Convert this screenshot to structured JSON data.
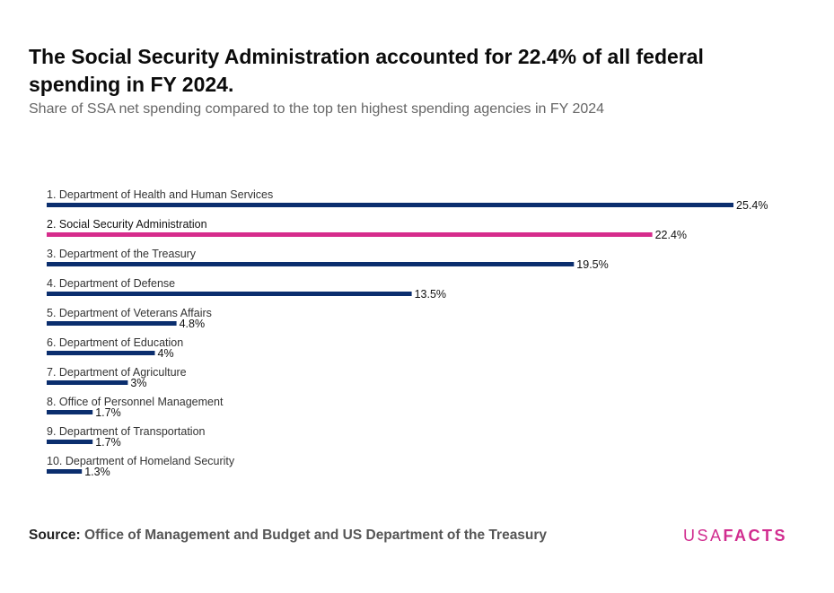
{
  "header": {
    "title": "The Social Security Administration accounted for 22.4% of all federal spending in FY 2024.",
    "subtitle": "Share of SSA net spending compared to the top ten highest spending agencies in FY 2024"
  },
  "footer": {
    "source_label": "Source:",
    "source_text": "Office of Management and Budget and US Department of the Treasury",
    "logo_usa": "USA",
    "logo_facts": "FACTS"
  },
  "colors": {
    "default_bar": "#0b2e6e",
    "highlight_bar": "#d62c8c",
    "brand": "#d12c8f"
  },
  "chart_data": {
    "type": "bar",
    "orientation": "horizontal",
    "title": "The Social Security Administration accounted for 22.4% of all federal spending in FY 2024.",
    "subtitle": "Share of SSA net spending compared to the top ten highest spending agencies in FY 2024",
    "xlim": [
      0,
      25.4
    ],
    "grid": false,
    "categories": [
      "1. Department of Health and Human Services",
      "2. Social Security Administration",
      "3. Department of the Treasury",
      "4. Department of Defense",
      "5. Department of Veterans Affairs",
      "6. Department of Education",
      "7. Department of Agriculture",
      "8. Office of Personnel Management",
      "9. Department of Transportation",
      "10. Department of Homeland Security"
    ],
    "values": [
      25.4,
      22.4,
      19.5,
      13.5,
      4.8,
      4,
      3,
      1.7,
      1.7,
      1.3
    ],
    "value_labels": [
      "25.4%",
      "22.4%",
      "19.5%",
      "13.5%",
      "4.8%",
      "4%",
      "3%",
      "1.7%",
      "1.7%",
      "1.3%"
    ],
    "highlight_index": 1
  }
}
